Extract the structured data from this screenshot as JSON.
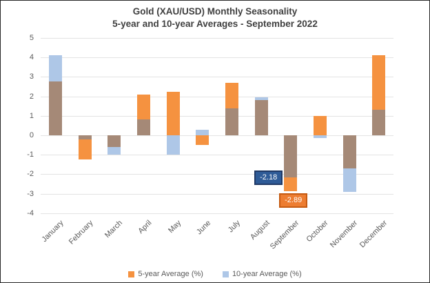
{
  "chart": {
    "title_line1": "Gold (XAU/USD) Monthly Seasonality",
    "title_line2": "5-year and 10-year Averages - September 2022",
    "legend": [
      {
        "label": "5-year Average (%)",
        "color": "#F59240"
      },
      {
        "label": "10-year Average (%)",
        "color": "#AEC7E7"
      }
    ]
  },
  "chart_data": {
    "type": "bar",
    "title": "Gold (XAU/USD) Monthly Seasonality 5-year and 10-year Averages - September 2022",
    "categories": [
      "January",
      "February",
      "March",
      "April",
      "May",
      "June",
      "July",
      "August",
      "September",
      "October",
      "November",
      "December"
    ],
    "series": [
      {
        "name": "5-year Average (%)",
        "color": "#F59240",
        "values": [
          2.75,
          -1.25,
          -0.6,
          2.1,
          2.25,
          -0.5,
          2.7,
          1.8,
          -2.89,
          1.0,
          -1.7,
          4.12
        ]
      },
      {
        "name": "10-year Average (%)",
        "color": "#AEC7E7",
        "values": [
          4.1,
          -0.2,
          -1.0,
          0.8,
          -1.0,
          0.3,
          1.4,
          1.95,
          -2.18,
          -0.15,
          -2.9,
          1.3
        ]
      }
    ],
    "overlap_color": "#A58977",
    "xlabel": "",
    "ylabel": "",
    "ylim": [
      -4,
      5
    ],
    "yticks": [
      5,
      4,
      3,
      2,
      1,
      0,
      -1,
      -2,
      -3,
      -4
    ],
    "grid": true,
    "legend_position": "bottom",
    "bar_style": "overlapping",
    "data_labels": [
      {
        "month": "September",
        "series": "10-year Average (%)",
        "text": "-2.18",
        "value": -2.18,
        "fill": "#2E5B97",
        "border": "#1F3864",
        "placement": "left"
      },
      {
        "month": "September",
        "series": "5-year Average (%)",
        "text": "-2.89",
        "value": -2.89,
        "fill": "#ED7D31",
        "border": "#C55A11",
        "placement": "below"
      }
    ]
  }
}
